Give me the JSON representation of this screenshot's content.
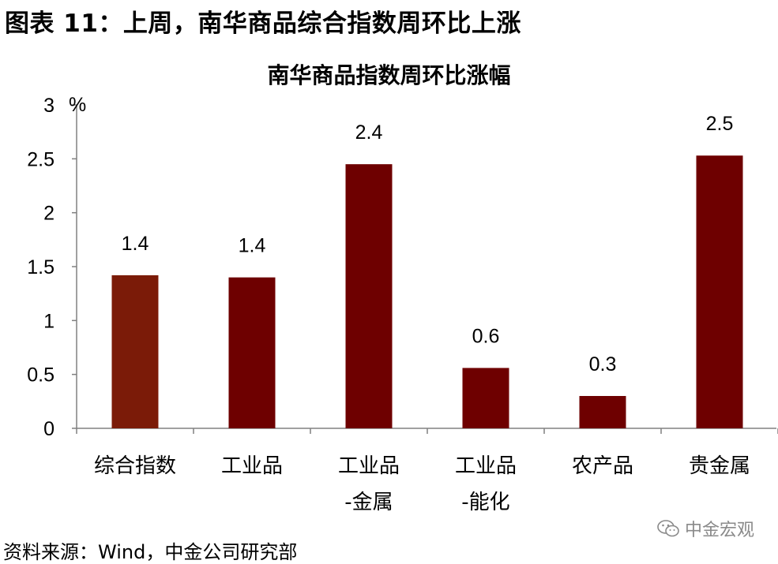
{
  "figure_heading": "图表 11：上周，南华商品综合指数周环比上涨",
  "source_note": "资料来源：Wind，中金公司研究部",
  "watermark": {
    "text": "中金宏观",
    "icon": "wechat-icon"
  },
  "colors": {
    "first_bar": "#7b1b08",
    "bars": "#6e0000",
    "axis": "#808080"
  },
  "chart_data": {
    "type": "bar",
    "title": "南华商品指数周环比涨幅",
    "unit_label": "%",
    "categories": [
      [
        "综合指数"
      ],
      [
        "工业品"
      ],
      [
        "工业品",
        "-金属"
      ],
      [
        "工业品",
        "-能化"
      ],
      [
        "农产品"
      ],
      [
        "贵金属"
      ]
    ],
    "values": [
      1.42,
      1.4,
      2.45,
      0.56,
      0.3,
      2.53
    ],
    "data_labels": [
      "1.4",
      "1.4",
      "2.4",
      "0.6",
      "0.3",
      "2.5"
    ],
    "y_ticks": [
      "0",
      "0.5",
      "1",
      "1.5",
      "2",
      "2.5",
      "3"
    ],
    "ylim": [
      0,
      3
    ],
    "grid": false,
    "legend": "none"
  }
}
